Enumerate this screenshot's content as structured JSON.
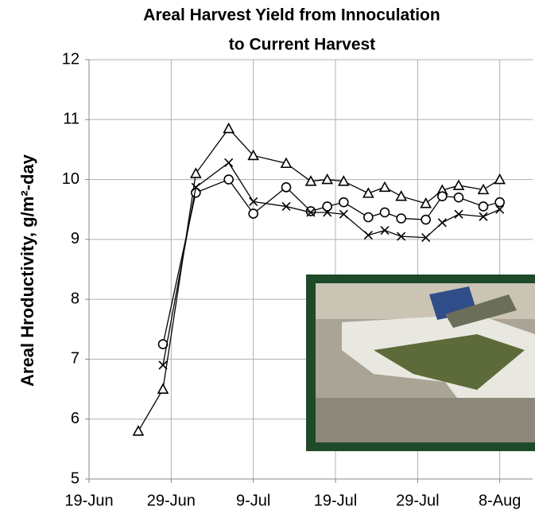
{
  "chart_data": {
    "type": "line",
    "title": [
      "Areal Harvest Yield from Innoculation",
      "to Current Harvest"
    ],
    "y_label": "Areal Hroductivity,  g/m²-day",
    "series": [
      {
        "color": "#000000",
        "marker": "triangle",
        "x": [
          "25-Jun",
          "28-Jun",
          "2-Jul",
          "6-Jul",
          "9-Jul",
          "13-Jul",
          "16-Jul",
          "18-Jul",
          "20-Jul",
          "23-Jul",
          "25-Jul",
          "27-Jul",
          "30-Jul",
          "1-Aug",
          "3-Aug",
          "6-Aug",
          "8-Aug"
        ],
        "values": [
          5.8,
          6.5,
          10.1,
          10.85,
          10.4,
          10.27,
          9.97,
          10.0,
          9.97,
          9.77,
          9.87,
          9.72,
          9.6,
          9.82,
          9.9,
          9.83,
          10.0
        ]
      },
      {
        "color": "#000000",
        "marker": "circle",
        "x": [
          "28-Jun",
          "2-Jul",
          "6-Jul",
          "9-Jul",
          "13-Jul",
          "16-Jul",
          "18-Jul",
          "20-Jul",
          "23-Jul",
          "25-Jul",
          "27-Jul",
          "30-Jul",
          "1-Aug",
          "3-Aug",
          "6-Aug",
          "8-Aug"
        ],
        "values": [
          7.25,
          9.78,
          10.0,
          9.43,
          9.87,
          9.47,
          9.55,
          9.62,
          9.37,
          9.45,
          9.35,
          9.33,
          9.72,
          9.7,
          9.55,
          9.62
        ]
      },
      {
        "color": "#000000",
        "marker": "x",
        "x": [
          "28-Jun",
          "2-Jul",
          "6-Jul",
          "9-Jul",
          "13-Jul",
          "16-Jul",
          "18-Jul",
          "20-Jul",
          "23-Jul",
          "25-Jul",
          "27-Jul",
          "30-Jul",
          "1-Aug",
          "3-Aug",
          "6-Aug",
          "8-Aug"
        ],
        "values": [
          6.9,
          9.87,
          10.28,
          9.63,
          9.55,
          9.45,
          9.45,
          9.42,
          9.07,
          9.15,
          9.05,
          9.03,
          9.28,
          9.42,
          9.38,
          9.5
        ]
      }
    ],
    "xlim": [
      "19-Jun",
      "12-Aug"
    ],
    "xticks": [
      "19-Jun",
      "29-Jun",
      "9-Jul",
      "19-Jul",
      "29-Jul",
      "8-Aug"
    ],
    "ylim": [
      5,
      12
    ],
    "yticks": [
      5,
      6,
      7,
      8,
      9,
      10,
      11,
      12
    ],
    "grid": true
  }
}
